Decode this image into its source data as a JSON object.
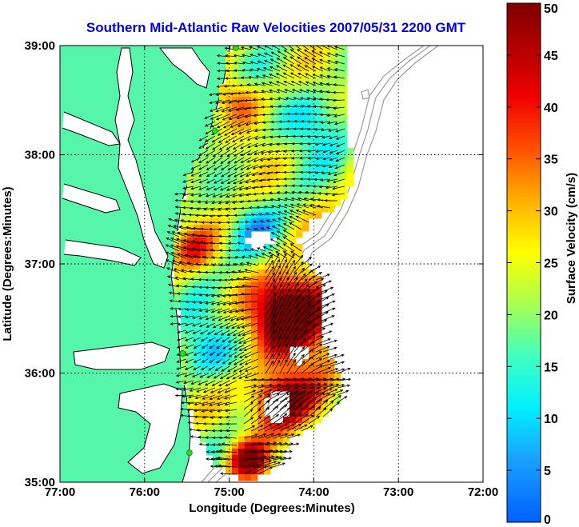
{
  "chart_data": {
    "type": "heatmap",
    "title": "Southern Mid-Atlantic Raw Velocities 2007/05/31 2200 GMT",
    "xlabel": "Longitude (Degrees:Minutes)",
    "ylabel": "Latitude (Degrees:Minutes)",
    "x_ticks": [
      "77:00",
      "76:00",
      "75:00",
      "74:00",
      "73:00",
      "72:00"
    ],
    "y_ticks": [
      "39:00",
      "38:00",
      "37:00",
      "36:00",
      "35:00"
    ],
    "xlim": [
      -77,
      -72
    ],
    "ylim": [
      35,
      39
    ],
    "grid": true,
    "colorbar": {
      "label": "Surface Velocity (cm/s)",
      "range": [
        0,
        50
      ],
      "ticks": [
        "0",
        "5",
        "10",
        "15",
        "20",
        "25",
        "30",
        "35",
        "40",
        "45",
        "50"
      ]
    },
    "colors": {
      "land": "#55f5aa",
      "coastline": "#000000",
      "bathymetry": "#9a9a9a",
      "arrows": "#000000",
      "stations": "#22dd22"
    },
    "stations": [
      {
        "lon": -74.92,
        "lat": 38.98
      },
      {
        "lon": -75.17,
        "lat": 38.22
      },
      {
        "lon": -75.55,
        "lat": 36.18
      },
      {
        "lon": -75.47,
        "lat": 35.27
      }
    ]
  }
}
